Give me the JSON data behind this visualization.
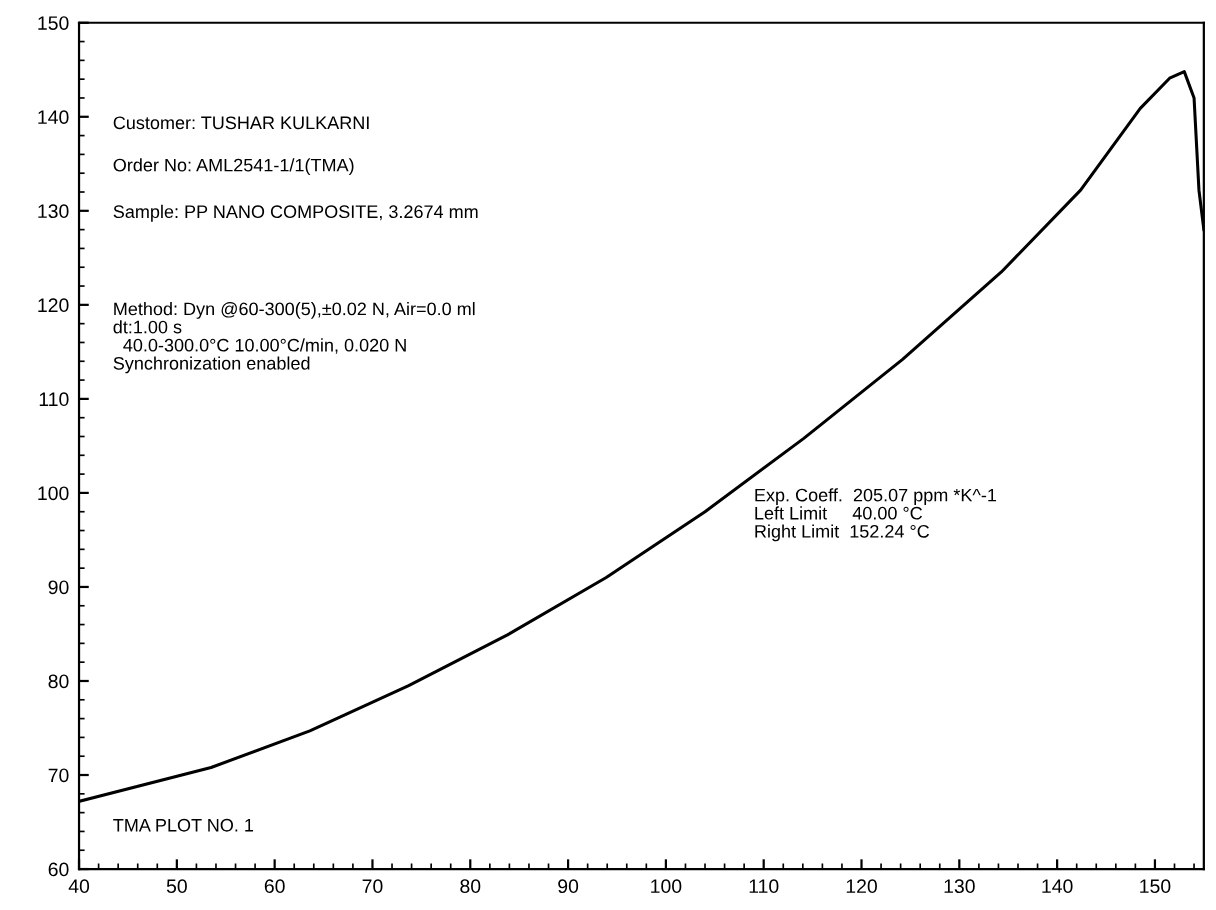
{
  "chart_data": {
    "type": "line",
    "x": [
      40,
      53.5,
      63.6,
      73.7,
      83.8,
      93.9,
      104,
      114.1,
      124.2,
      134.3,
      142.4,
      148.5,
      151.5,
      153,
      154,
      154.5,
      155
    ],
    "series": [
      {
        "color": "#000000",
        "values": [
          67.2,
          70.8,
          74.7,
          79.5,
          84.9,
          91.0,
          98.0,
          105.8,
          114.2,
          123.5,
          132.2,
          140.9,
          144.1,
          144.8,
          142,
          132.2,
          128
        ]
      }
    ],
    "xlim": [
      40,
      155
    ],
    "xticks": [
      40,
      50,
      60,
      70,
      80,
      90,
      100,
      110,
      120,
      130,
      140,
      150
    ],
    "ylim": [
      60,
      150
    ],
    "yticks": [
      60,
      70,
      80,
      90,
      100,
      110,
      120,
      130,
      140,
      150
    ],
    "grid": false,
    "legend": false,
    "marker": "none",
    "line_style": "solid",
    "annotations": [
      "Customer: TUSHAR KULKARNI",
      "Order No: AML2541-1/1(TMA)",
      "Sample: PP NANO COMPOSITE, 3.2674 mm",
      "Method: Dyn @60-300(5),±0.02 N, Air=0.0 ml\ndt:1.00 s\n  40.0-300.0°C 10.00°C/min, 0.020 N\nSynchronization enabled",
      "Exp. Coeff.  205.07 ppm *K^-1\nLeft Limit     40.00 °C\nRight Limit  152.24 °C",
      "TMA PLOT NO. 1"
    ]
  }
}
